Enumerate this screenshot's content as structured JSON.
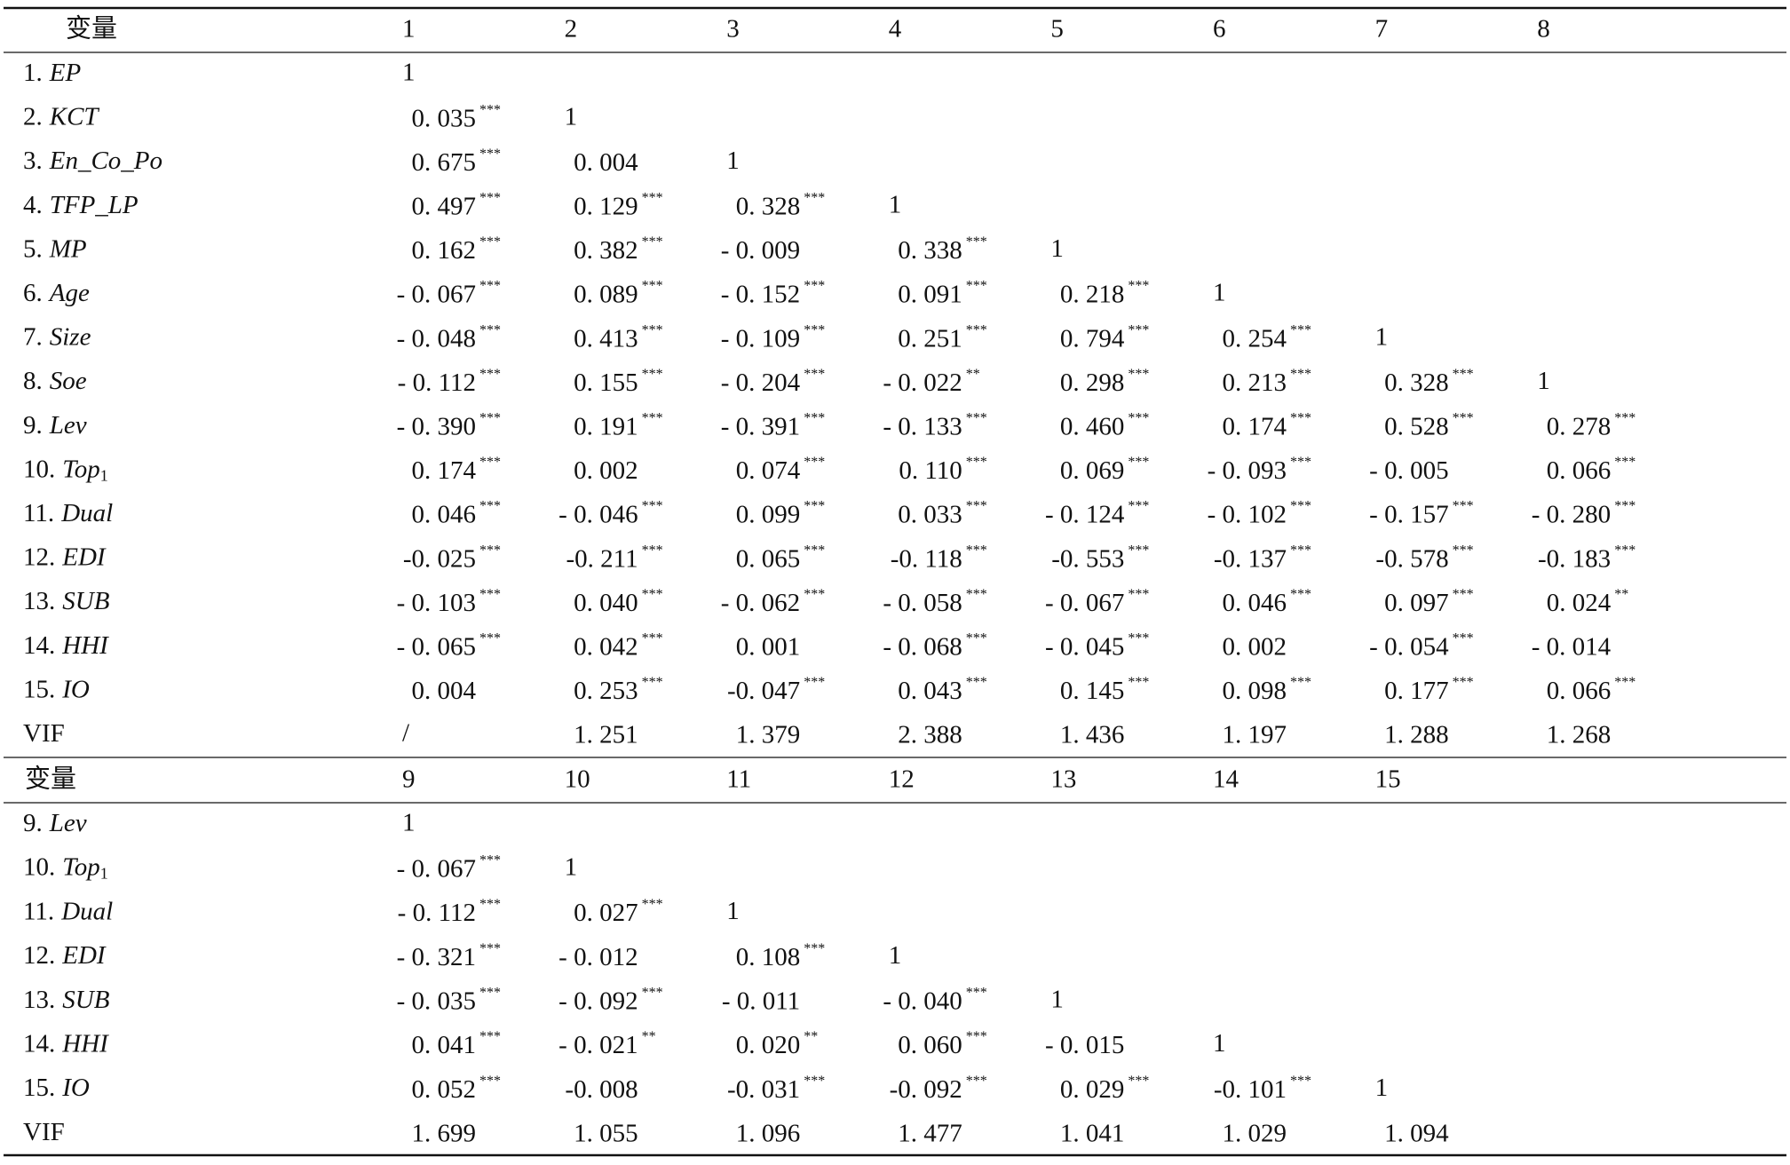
{
  "sections": [
    {
      "header": {
        "title": "变量",
        "columns": [
          "1",
          "2",
          "3",
          "4",
          "5",
          "6",
          "7",
          "8"
        ]
      },
      "rows": [
        {
          "label": {
            "no": "1.",
            "var": "EP"
          },
          "cells": [
            "1"
          ]
        },
        {
          "label": {
            "no": "2.",
            "var": "KCT"
          },
          "cells": [
            {
              "v": "0. 035",
              "s": "***"
            },
            "1"
          ]
        },
        {
          "label": {
            "no": "3.",
            "var": "En_Co_Po"
          },
          "cells": [
            {
              "v": "0. 675",
              "s": "***"
            },
            "0. 004",
            "1"
          ]
        },
        {
          "label": {
            "no": "4.",
            "var": "TFP_LP"
          },
          "cells": [
            {
              "v": "0. 497",
              "s": "***"
            },
            {
              "v": "0. 129",
              "s": "***"
            },
            {
              "v": "0. 328",
              "s": "***"
            },
            "1"
          ]
        },
        {
          "label": {
            "no": "5.",
            "var": "MP"
          },
          "cells": [
            {
              "v": "0. 162",
              "s": "***"
            },
            {
              "v": "0. 382",
              "s": "***"
            },
            "- 0. 009",
            {
              "v": "0. 338",
              "s": "***"
            },
            "1"
          ]
        },
        {
          "label": {
            "no": "6.",
            "var": "Age"
          },
          "cells": [
            {
              "v": "- 0. 067",
              "s": "***"
            },
            {
              "v": "0. 089",
              "s": "***"
            },
            {
              "v": "- 0. 152",
              "s": "***"
            },
            {
              "v": "0. 091",
              "s": "***"
            },
            {
              "v": "0. 218",
              "s": "***"
            },
            "1"
          ]
        },
        {
          "label": {
            "no": "7.",
            "var": "Size"
          },
          "cells": [
            {
              "v": "- 0. 048",
              "s": "***"
            },
            {
              "v": "0. 413",
              "s": "***"
            },
            {
              "v": "- 0. 109",
              "s": "***"
            },
            {
              "v": "0. 251",
              "s": "***"
            },
            {
              "v": "0. 794",
              "s": "***"
            },
            {
              "v": "0. 254",
              "s": "***"
            },
            "1"
          ]
        },
        {
          "label": {
            "no": "8.",
            "var": "Soe"
          },
          "cells": [
            {
              "v": "- 0. 112",
              "s": "***"
            },
            {
              "v": "0. 155",
              "s": "***"
            },
            {
              "v": "- 0. 204",
              "s": "***"
            },
            {
              "v": "- 0. 022",
              "s": "**"
            },
            {
              "v": "0. 298",
              "s": "***"
            },
            {
              "v": "0. 213",
              "s": "***"
            },
            {
              "v": "0. 328",
              "s": "***"
            },
            "1"
          ]
        },
        {
          "label": {
            "no": "9.",
            "var": "Lev"
          },
          "cells": [
            {
              "v": "- 0. 390",
              "s": "***"
            },
            {
              "v": "0. 191",
              "s": "***"
            },
            {
              "v": "- 0. 391",
              "s": "***"
            },
            {
              "v": "- 0. 133",
              "s": "***"
            },
            {
              "v": "0. 460",
              "s": "***"
            },
            {
              "v": "0. 174",
              "s": "***"
            },
            {
              "v": "0. 528",
              "s": "***"
            },
            {
              "v": "0. 278",
              "s": "***"
            }
          ]
        },
        {
          "label": {
            "no": "10.",
            "var": "Top",
            "sub": "1"
          },
          "cells": [
            {
              "v": "0. 174",
              "s": "***"
            },
            "0. 002",
            {
              "v": "0. 074",
              "s": "***"
            },
            {
              "v": "0. 110",
              "s": "***"
            },
            {
              "v": "0. 069",
              "s": "***"
            },
            {
              "v": "- 0. 093",
              "s": "***"
            },
            "- 0. 005",
            {
              "v": "0. 066",
              "s": "***"
            }
          ]
        },
        {
          "label": {
            "no": "11.",
            "var": "Dual"
          },
          "cells": [
            {
              "v": "0. 046",
              "s": "***"
            },
            {
              "v": "- 0. 046",
              "s": "***"
            },
            {
              "v": "0. 099",
              "s": "***"
            },
            {
              "v": "0. 033",
              "s": "***"
            },
            {
              "v": "- 0. 124",
              "s": "***"
            },
            {
              "v": "- 0. 102",
              "s": "***"
            },
            {
              "v": "- 0. 157",
              "s": "***"
            },
            {
              "v": "- 0. 280",
              "s": "***"
            }
          ]
        },
        {
          "label": {
            "no": "12.",
            "var": "EDI"
          },
          "cells": [
            {
              "v": "-0. 025",
              "s": "***"
            },
            {
              "v": "-0. 211",
              "s": "***"
            },
            {
              "v": "0. 065",
              "s": "***"
            },
            {
              "v": "-0. 118",
              "s": "***"
            },
            {
              "v": "-0. 553",
              "s": "***"
            },
            {
              "v": "-0. 137",
              "s": "***"
            },
            {
              "v": "-0. 578",
              "s": "***"
            },
            {
              "v": "-0. 183",
              "s": "***"
            }
          ]
        },
        {
          "label": {
            "no": "13.",
            "var": "SUB"
          },
          "cells": [
            {
              "v": "- 0. 103",
              "s": "***"
            },
            {
              "v": "0. 040",
              "s": "***"
            },
            {
              "v": "- 0. 062",
              "s": "***"
            },
            {
              "v": "- 0. 058",
              "s": "***"
            },
            {
              "v": "- 0. 067",
              "s": "***"
            },
            {
              "v": "0. 046",
              "s": "***"
            },
            {
              "v": "0. 097",
              "s": "***"
            },
            {
              "v": "0. 024",
              "s": "**"
            }
          ]
        },
        {
          "label": {
            "no": "14.",
            "var": "HHI"
          },
          "cells": [
            {
              "v": "- 0. 065",
              "s": "***"
            },
            {
              "v": "0. 042",
              "s": "***"
            },
            "0. 001",
            {
              "v": "- 0. 068",
              "s": "***"
            },
            {
              "v": "- 0. 045",
              "s": "***"
            },
            "0. 002",
            {
              "v": "- 0. 054",
              "s": "***"
            },
            "- 0. 014"
          ]
        },
        {
          "label": {
            "no": "15.",
            "var": "IO"
          },
          "cells": [
            "0. 004",
            {
              "v": "0. 253",
              "s": "***"
            },
            {
              "v": "-0. 047",
              "s": "***"
            },
            {
              "v": "0. 043",
              "s": "***"
            },
            {
              "v": "0. 145",
              "s": "***"
            },
            {
              "v": "0. 098",
              "s": "***"
            },
            {
              "v": "0. 177",
              "s": "***"
            },
            {
              "v": "0. 066",
              "s": "***"
            }
          ]
        },
        {
          "label": {
            "no": "VIF"
          },
          "cells": [
            "/",
            "1. 251",
            "1. 379",
            "2. 388",
            "1. 436",
            "1. 197",
            "1. 288",
            "1. 268"
          ]
        }
      ]
    },
    {
      "header": {
        "title": "变量",
        "columns": [
          "9",
          "10",
          "11",
          "12",
          "13",
          "14",
          "15"
        ]
      },
      "rows": [
        {
          "label": {
            "no": "9.",
            "var": "Lev"
          },
          "cells": [
            "1"
          ]
        },
        {
          "label": {
            "no": "10.",
            "var": "Top",
            "sub": "1"
          },
          "cells": [
            {
              "v": "- 0. 067",
              "s": "***"
            },
            "1"
          ]
        },
        {
          "label": {
            "no": "11.",
            "var": "Dual"
          },
          "cells": [
            {
              "v": "- 0. 112",
              "s": "***"
            },
            {
              "v": "0. 027",
              "s": "***"
            },
            "1"
          ]
        },
        {
          "label": {
            "no": "12.",
            "var": "EDI"
          },
          "cells": [
            {
              "v": "- 0. 321",
              "s": "***"
            },
            "- 0. 012",
            {
              "v": "0. 108",
              "s": "***"
            },
            "1"
          ]
        },
        {
          "label": {
            "no": "13.",
            "var": "SUB"
          },
          "cells": [
            {
              "v": "- 0. 035",
              "s": "***"
            },
            {
              "v": "- 0. 092",
              "s": "***"
            },
            "- 0. 011",
            {
              "v": "- 0. 040",
              "s": "***"
            },
            "1"
          ]
        },
        {
          "label": {
            "no": "14.",
            "var": "HHI"
          },
          "cells": [
            {
              "v": "0. 041",
              "s": "***"
            },
            {
              "v": "- 0. 021",
              "s": "**"
            },
            {
              "v": "0. 020",
              "s": "**"
            },
            {
              "v": "0. 060",
              "s": "***"
            },
            "- 0. 015",
            "1"
          ]
        },
        {
          "label": {
            "no": "15.",
            "var": "IO"
          },
          "cells": [
            {
              "v": "0. 052",
              "s": "***"
            },
            "-0. 008",
            {
              "v": "-0. 031",
              "s": "***"
            },
            {
              "v": "-0. 092",
              "s": "***"
            },
            {
              "v": "0. 029",
              "s": "***"
            },
            {
              "v": "-0. 101",
              "s": "***"
            },
            "1"
          ]
        },
        {
          "label": {
            "no": "VIF"
          },
          "cells": [
            "1. 699",
            "1. 055",
            "1. 096",
            "1. 477",
            "1. 041",
            "1. 029",
            "1. 094"
          ]
        }
      ]
    }
  ]
}
